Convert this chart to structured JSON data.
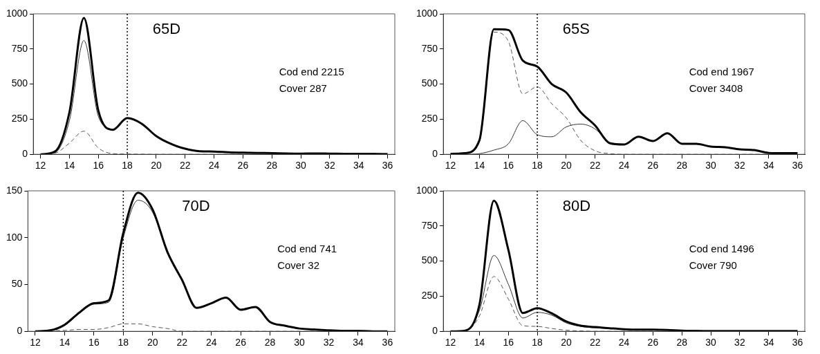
{
  "chart_data": [
    {
      "type": "line",
      "title": "65D",
      "annotations": [
        "Cod end 2215",
        "Cover 287"
      ],
      "x": [
        12,
        13,
        14,
        15,
        16,
        17,
        18,
        19,
        20,
        21,
        22,
        23,
        24,
        25,
        26,
        27,
        28,
        29,
        30,
        31,
        32,
        33,
        34,
        35,
        36
      ],
      "xlim": [
        11.5,
        36.5
      ],
      "xticks": [
        12,
        14,
        16,
        18,
        20,
        22,
        24,
        26,
        28,
        30,
        32,
        34,
        36
      ],
      "ylim": [
        0,
        1000
      ],
      "yticks": [
        0,
        250,
        500,
        750,
        1000
      ],
      "grid": false,
      "legend": false,
      "marker": "none",
      "ref_lines": [
        {
          "axis": "x",
          "value": 18,
          "line_style": "dotted",
          "color": "#000000"
        }
      ],
      "series": [
        {
          "color": "#000000",
          "line_style": "solid",
          "values": [
            0,
            20,
            300,
            970,
            310,
            175,
            258,
            218,
            130,
            75,
            40,
            22,
            20,
            15,
            12,
            10,
            8,
            6,
            5,
            6,
            5,
            4,
            3,
            3,
            2
          ]
        },
        {
          "color": "#333333",
          "line_style": "solid",
          "values": [
            0,
            12,
            240,
            810,
            270,
            170,
            null,
            null,
            null,
            null,
            null,
            null,
            null,
            null,
            null,
            null,
            null,
            null,
            null,
            null,
            null,
            null,
            null,
            null,
            null
          ]
        },
        {
          "color": "#555555",
          "line_style": "dashed",
          "values": [
            0,
            8,
            80,
            165,
            45,
            5,
            2,
            1,
            0,
            0,
            0,
            0,
            0,
            0,
            0,
            0,
            0,
            0,
            0,
            0,
            0,
            0,
            0,
            0,
            0
          ]
        }
      ]
    },
    {
      "type": "line",
      "title": "65S",
      "annotations": [
        "Cod end 1967",
        "Cover 3408"
      ],
      "x": [
        12,
        13,
        14,
        15,
        16,
        17,
        18,
        19,
        20,
        21,
        22,
        23,
        24,
        25,
        26,
        27,
        28,
        29,
        30,
        31,
        32,
        33,
        34,
        35,
        36
      ],
      "xlim": [
        11.5,
        36.5
      ],
      "xticks": [
        12,
        14,
        16,
        18,
        20,
        22,
        24,
        26,
        28,
        30,
        32,
        34,
        36
      ],
      "ylim": [
        0,
        1000
      ],
      "yticks": [
        0,
        250,
        500,
        750,
        1000
      ],
      "grid": false,
      "legend": false,
      "marker": "none",
      "ref_lines": [
        {
          "axis": "x",
          "value": 18,
          "line_style": "dotted",
          "color": "#000000"
        }
      ],
      "series": [
        {
          "color": "#000000",
          "line_style": "solid",
          "values": [
            3,
            8,
            100,
            890,
            885,
            667,
            625,
            500,
            440,
            300,
            205,
            80,
            70,
            125,
            95,
            150,
            75,
            75,
            55,
            50,
            35,
            30,
            10,
            8,
            8
          ]
        },
        {
          "color": "#333333",
          "line_style": "solid",
          "values": [
            0,
            0,
            5,
            30,
            75,
            240,
            140,
            125,
            195,
            215,
            180,
            78,
            null,
            null,
            null,
            null,
            null,
            null,
            null,
            null,
            null,
            null,
            null,
            null,
            null
          ]
        },
        {
          "color": "#555555",
          "line_style": "dashed",
          "values": [
            0,
            5,
            90,
            870,
            805,
            430,
            480,
            360,
            260,
            100,
            25,
            5,
            0,
            0,
            0,
            0,
            0,
            0,
            0,
            0,
            0,
            0,
            0,
            0,
            0
          ]
        }
      ]
    },
    {
      "type": "line",
      "title": "70D",
      "annotations": [
        "Cod end 741",
        "Cover 32"
      ],
      "x": [
        12,
        13,
        14,
        15,
        16,
        17,
        18,
        19,
        20,
        21,
        22,
        23,
        24,
        25,
        26,
        27,
        28,
        29,
        30,
        31,
        32,
        33,
        34,
        35,
        36
      ],
      "xlim": [
        11.5,
        36.5
      ],
      "xticks": [
        12,
        14,
        16,
        18,
        20,
        22,
        24,
        26,
        28,
        30,
        32,
        34,
        36
      ],
      "ylim": [
        0,
        150
      ],
      "yticks": [
        0,
        50,
        100,
        150
      ],
      "grid": false,
      "legend": false,
      "marker": "none",
      "ref_lines": [
        {
          "axis": "x",
          "value": 18,
          "line_style": "dotted",
          "color": "#000000"
        }
      ],
      "series": [
        {
          "color": "#000000",
          "line_style": "solid",
          "values": [
            0,
            1,
            7,
            20,
            30,
            33,
            105,
            148,
            130,
            85,
            55,
            25,
            30,
            36,
            23,
            26,
            10,
            6,
            3,
            2,
            1,
            0.5,
            0.5,
            0,
            0
          ]
        },
        {
          "color": "#333333",
          "line_style": "solid",
          "values": [
            0,
            0.5,
            6,
            19,
            29,
            31,
            100,
            140,
            127,
            83,
            null,
            null,
            null,
            null,
            null,
            null,
            null,
            null,
            null,
            null,
            null,
            null,
            null,
            null,
            null
          ]
        },
        {
          "color": "#555555",
          "line_style": "dashed",
          "values": [
            0,
            1,
            1,
            2,
            2,
            4,
            8,
            8,
            5,
            3,
            0,
            0,
            0,
            0,
            0,
            0,
            0,
            0,
            0,
            0,
            0,
            0,
            0,
            0,
            0
          ]
        }
      ]
    },
    {
      "type": "line",
      "title": "80D",
      "annotations": [
        "Cod end 1496",
        "Cover 790"
      ],
      "x": [
        12,
        13,
        14,
        15,
        16,
        17,
        18,
        19,
        20,
        21,
        22,
        23,
        24,
        25,
        26,
        27,
        28,
        29,
        30,
        31,
        32,
        33,
        34,
        35,
        36
      ],
      "xlim": [
        11.5,
        36.5
      ],
      "xticks": [
        12,
        14,
        16,
        18,
        20,
        22,
        24,
        26,
        28,
        30,
        32,
        34,
        36
      ],
      "ylim": [
        0,
        1000
      ],
      "yticks": [
        0,
        250,
        500,
        750,
        1000
      ],
      "grid": false,
      "legend": false,
      "marker": "none",
      "ref_lines": [
        {
          "axis": "x",
          "value": 18,
          "line_style": "dotted",
          "color": "#000000"
        }
      ],
      "series": [
        {
          "color": "#000000",
          "line_style": "solid",
          "values": [
            0,
            5,
            190,
            930,
            580,
            130,
            165,
            128,
            70,
            40,
            30,
            22,
            15,
            12,
            12,
            10,
            5,
            3,
            2,
            2,
            2,
            2,
            2,
            2,
            2
          ]
        },
        {
          "color": "#333333",
          "line_style": "solid",
          "values": [
            0,
            3,
            150,
            540,
            335,
            95,
            135,
            115,
            60,
            35,
            25,
            20,
            null,
            null,
            null,
            null,
            null,
            null,
            null,
            null,
            null,
            null,
            null,
            null,
            null
          ]
        },
        {
          "color": "#555555",
          "line_style": "dashed",
          "values": [
            0,
            2,
            110,
            390,
            230,
            40,
            35,
            20,
            8,
            3,
            0,
            0,
            0,
            0,
            0,
            0,
            0,
            0,
            0,
            0,
            0,
            0,
            0,
            0,
            0
          ]
        }
      ]
    }
  ]
}
